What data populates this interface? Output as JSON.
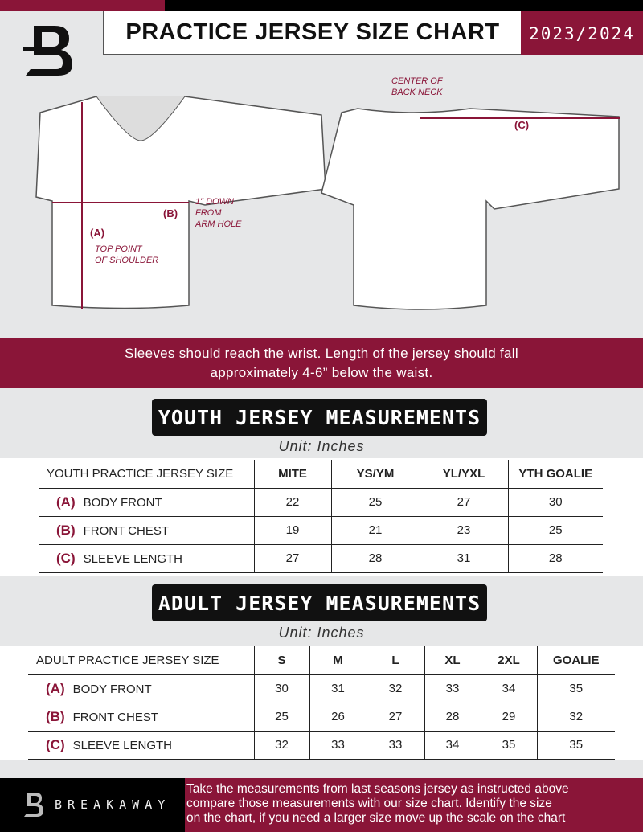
{
  "header": {
    "title": "PRACTICE JERSEY SIZE CHART",
    "season": "2023/2024"
  },
  "colors": {
    "accent": "#8a1538",
    "dark": "#111111",
    "background": "#e6e7e8"
  },
  "diagram": {
    "center_back_neck": [
      "CENTER OF",
      "BACK NECK"
    ],
    "label_a": "(A)",
    "label_b": "(B)",
    "label_c": "(C)",
    "down_from_arm": [
      "1\" DOWN",
      "FROM",
      "ARM HOLE"
    ],
    "top_point": [
      "TOP POINT",
      "OF SHOULDER"
    ]
  },
  "band": {
    "line1": "Sleeves should reach the wrist. Length of the jersey should fall",
    "line2": "approximately 4-6” below the waist."
  },
  "youth": {
    "title": "YOUTH JERSEY MEASUREMENTS",
    "unit": "Unit: Inches",
    "header": "YOUTH PRACTICE JERSEY SIZE",
    "sizes": [
      "MITE",
      "YS/YM",
      "YL/YXL",
      "YTH GOALIE"
    ],
    "rows": [
      {
        "letter": "(A)",
        "label": "BODY FRONT",
        "values": [
          "22",
          "25",
          "27",
          "30"
        ]
      },
      {
        "letter": "(B)",
        "label": "FRONT CHEST",
        "values": [
          "19",
          "21",
          "23",
          "25"
        ]
      },
      {
        "letter": "(C)",
        "label": "SLEEVE LENGTH",
        "values": [
          "27",
          "28",
          "31",
          "28"
        ]
      }
    ]
  },
  "adult": {
    "title": "ADULT JERSEY MEASUREMENTS",
    "unit": "Unit: Inches",
    "header": "ADULT PRACTICE JERSEY SIZE",
    "sizes": [
      "S",
      "M",
      "L",
      "XL",
      "2XL",
      "GOALIE"
    ],
    "rows": [
      {
        "letter": "(A)",
        "label": "BODY FRONT",
        "values": [
          "30",
          "31",
          "32",
          "33",
          "34",
          "35"
        ]
      },
      {
        "letter": "(B)",
        "label": "FRONT CHEST",
        "values": [
          "25",
          "26",
          "27",
          "28",
          "29",
          "32"
        ]
      },
      {
        "letter": "(C)",
        "label": "SLEEVE LENGTH",
        "values": [
          "32",
          "33",
          "33",
          "34",
          "35",
          "35"
        ]
      }
    ]
  },
  "footer": {
    "brand": "BREAKAWAY",
    "text": [
      "Take the measurements from last seasons jersey as instructed above",
      "compare those measurements  with our size chart. Identify the size",
      "on the chart, if you need a larger size move up the scale on the chart"
    ]
  }
}
